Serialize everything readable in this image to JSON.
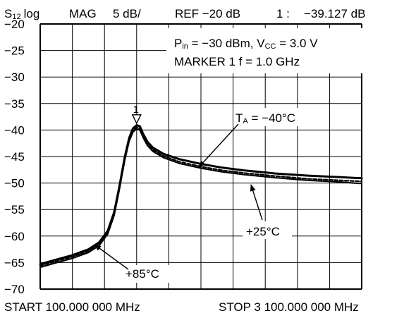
{
  "header": {
    "param": "S",
    "param_sub": "12",
    "param_suffix": "log",
    "format": "MAG",
    "scale": "5 dB/",
    "ref": "REF −20 dB",
    "marker_label": "1 :",
    "marker_value": "−39.127 dB"
  },
  "conditions": {
    "line1": [
      {
        "t": "P",
        "sub": false
      },
      {
        "t": "in",
        "sub": true
      },
      {
        "t": " = −30 dBm, V",
        "sub": false
      },
      {
        "t": "CC",
        "sub": true
      },
      {
        "t": " = 3.0 V",
        "sub": false
      }
    ],
    "line2": "MARKER 1  f = 1.0 GHz"
  },
  "footer": {
    "start": "START  100.000 000 MHz",
    "stop": "STOP  3 100.000 000 MHz"
  },
  "annotations": {
    "marker_number": "1",
    "t_minus40": {
      "pre": "T",
      "sub": "A",
      "post": " = −40°C"
    },
    "t_plus25": "+25°C",
    "t_plus85": "+85°C"
  },
  "colors": {
    "trace": "#000000",
    "grid": "#000000",
    "background": "#ffffff"
  },
  "chart_data": {
    "type": "line",
    "title": "",
    "xlabel": "",
    "ylabel": "",
    "xlim": [
      100,
      3100
    ],
    "ylim": [
      -70,
      -20
    ],
    "x_unit": "MHz",
    "y_unit": "dB",
    "grid": true,
    "x_divisions": 10,
    "yticks": [
      -20,
      -25,
      -30,
      -35,
      -40,
      -45,
      -50,
      -55,
      -60,
      -65,
      -70
    ],
    "ytick_labels": [
      "−20",
      "−25",
      "−30",
      "−35",
      "−40",
      "−45",
      "−50",
      "−55",
      "−60",
      "−65",
      "−70"
    ],
    "marker": {
      "x": 1000,
      "y": -39.127
    },
    "series": [
      {
        "name": "Tₐ = −40°C",
        "style": "solid",
        "points": [
          [
            100,
            -65.3
          ],
          [
            220,
            -64.6
          ],
          [
            400,
            -63.6
          ],
          [
            550,
            -62.5
          ],
          [
            650,
            -61.2
          ],
          [
            730,
            -59
          ],
          [
            790,
            -55.5
          ],
          [
            840,
            -50.5
          ],
          [
            890,
            -45
          ],
          [
            930,
            -41.5
          ],
          [
            965,
            -39.7
          ],
          [
            1000,
            -39.1
          ],
          [
            1030,
            -39.3
          ],
          [
            1060,
            -40.7
          ],
          [
            1100,
            -42.2
          ],
          [
            1150,
            -43.3
          ],
          [
            1250,
            -44.5
          ],
          [
            1400,
            -45.5
          ],
          [
            1600,
            -46.4
          ],
          [
            1800,
            -47.1
          ],
          [
            2000,
            -47.6
          ],
          [
            2300,
            -48.2
          ],
          [
            2600,
            -48.6
          ],
          [
            2900,
            -48.9
          ],
          [
            3100,
            -49.1
          ]
        ]
      },
      {
        "name": "+25°C",
        "style": "dashed",
        "points": [
          [
            100,
            -65.6
          ],
          [
            220,
            -64.9
          ],
          [
            400,
            -63.9
          ],
          [
            550,
            -62.8
          ],
          [
            650,
            -61.5
          ],
          [
            730,
            -59.3
          ],
          [
            790,
            -55.8
          ],
          [
            840,
            -50.8
          ],
          [
            890,
            -45.3
          ],
          [
            930,
            -41.8
          ],
          [
            965,
            -40.1
          ],
          [
            1000,
            -39.5
          ],
          [
            1030,
            -39.7
          ],
          [
            1060,
            -41.1
          ],
          [
            1100,
            -42.6
          ],
          [
            1150,
            -43.7
          ],
          [
            1250,
            -44.9
          ],
          [
            1400,
            -46
          ],
          [
            1600,
            -46.9
          ],
          [
            1800,
            -47.6
          ],
          [
            2000,
            -48.1
          ],
          [
            2300,
            -48.7
          ],
          [
            2600,
            -49.2
          ],
          [
            2900,
            -49.5
          ],
          [
            3100,
            -49.7
          ]
        ]
      },
      {
        "name": "+85°C",
        "style": "dotted",
        "points": [
          [
            100,
            -65.9
          ],
          [
            220,
            -65.2
          ],
          [
            400,
            -64.2
          ],
          [
            550,
            -63.1
          ],
          [
            650,
            -61.8
          ],
          [
            730,
            -59.6
          ],
          [
            790,
            -56.1
          ],
          [
            840,
            -51.1
          ],
          [
            890,
            -45.6
          ],
          [
            930,
            -42.1
          ],
          [
            965,
            -40.4
          ],
          [
            1000,
            -39.8
          ],
          [
            1030,
            -40
          ],
          [
            1060,
            -41.4
          ],
          [
            1100,
            -42.9
          ],
          [
            1150,
            -44
          ],
          [
            1250,
            -45.2
          ],
          [
            1400,
            -46.3
          ],
          [
            1600,
            -47.2
          ],
          [
            1800,
            -47.9
          ],
          [
            2000,
            -48.4
          ],
          [
            2300,
            -49
          ],
          [
            2600,
            -49.5
          ],
          [
            2900,
            -49.8
          ],
          [
            3100,
            -50.1
          ]
        ]
      }
    ]
  }
}
